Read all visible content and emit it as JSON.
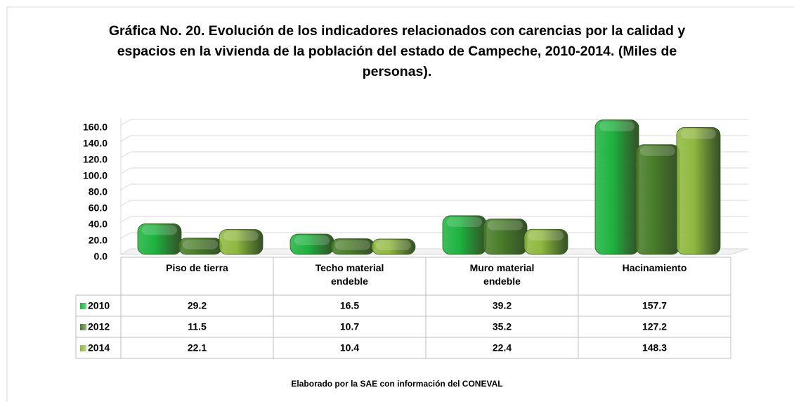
{
  "chart_data": {
    "type": "bar",
    "title": "Gráfica No. 20. Evolución de los indicadores relacionados con carencias por la calidad y espacios en la vivienda de la población del estado de Campeche, 2010-2014. (Miles de personas).",
    "categories": [
      "Piso de tierra",
      "Techo material endeble",
      "Muro material endeble",
      "Hacinamiento"
    ],
    "series": [
      {
        "name": "2010",
        "color": "#1db33f",
        "values": [
          29.2,
          16.5,
          39.2,
          157.7
        ]
      },
      {
        "name": "2012",
        "color": "#4a7d2a",
        "values": [
          11.5,
          10.7,
          35.2,
          127.2
        ]
      },
      {
        "name": "2014",
        "color": "#8fb83e",
        "values": [
          22.1,
          10.4,
          22.4,
          148.3
        ]
      }
    ],
    "ylim": [
      0,
      160
    ],
    "yticks": [
      {
        "value": 0,
        "label": "0.0"
      },
      {
        "value": 20,
        "label": "20.0"
      },
      {
        "value": 40,
        "label": "40.0"
      },
      {
        "value": 60,
        "label": "60.0"
      },
      {
        "value": 80,
        "label": "80.0"
      },
      {
        "value": 100,
        "label": "100.0"
      },
      {
        "value": 120,
        "label": "120.0"
      },
      {
        "value": 140,
        "label": "140.0"
      },
      {
        "value": 160,
        "label": "160.0"
      }
    ],
    "grid": true,
    "footnote": "Elaborado por la SAE con información del CONEVAL"
  }
}
